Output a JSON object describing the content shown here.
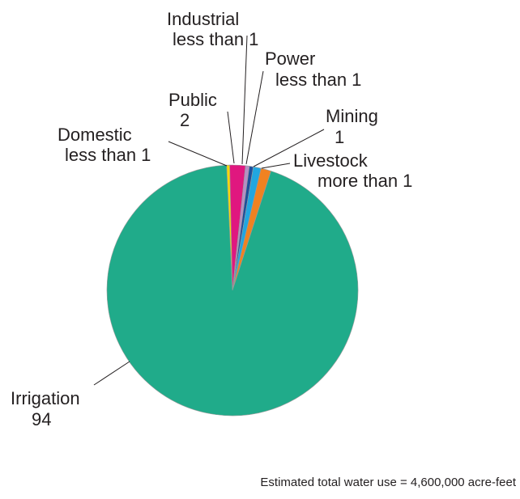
{
  "chart_data": {
    "type": "pie",
    "title": "",
    "note": "Estimated total water use = 4,600,000 acre-feet",
    "slices": [
      {
        "name": "Domestic",
        "value_text": "less than 1",
        "value": 0.4,
        "color": "#f5d90a"
      },
      {
        "name": "Public",
        "value_text": "2",
        "value": 2,
        "color": "#e0177f"
      },
      {
        "name": "Industrial",
        "value_text": "less than 1",
        "value": 0.5,
        "color": "#b58fc4"
      },
      {
        "name": "Power",
        "value_text": "less than 1",
        "value": 0.5,
        "color": "#1d4f9c"
      },
      {
        "name": "Mining",
        "value_text": "1",
        "value": 1,
        "color": "#21a6e0"
      },
      {
        "name": "Livestock",
        "value_text": "more than 1",
        "value": 1.3,
        "color": "#f08221"
      },
      {
        "name": "Irrigation",
        "value_text": "94",
        "value": 94,
        "color": "#20ab8a"
      }
    ]
  }
}
